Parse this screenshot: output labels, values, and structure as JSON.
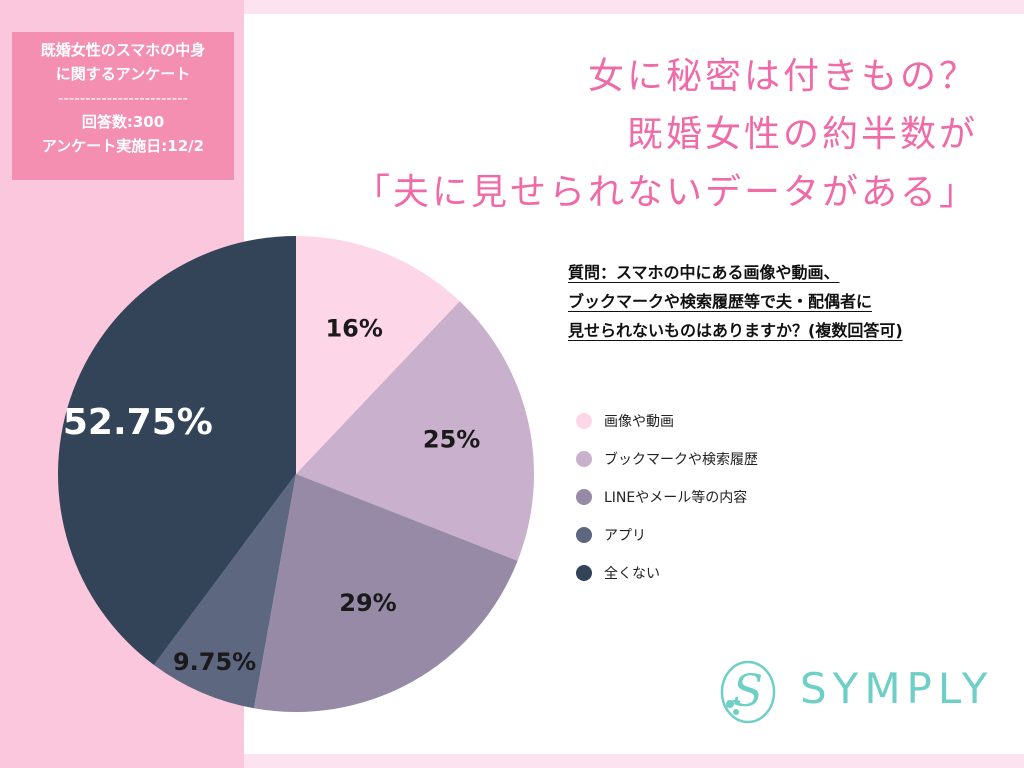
{
  "info_box": {
    "line1": "既婚女性のスマホの中身",
    "line2": "に関するアンケート",
    "divider": "------------------------",
    "count": "回答数:300",
    "date": "アンケート実施日:12/2"
  },
  "headline": {
    "line1": "女に秘密は付きもの？",
    "line2": "既婚女性の約半数が",
    "line3": "「夫に見せられないデータがある」"
  },
  "question": {
    "line1": "質問：スマホの中にある画像や動画、",
    "line2": "ブックマークや検索履歴等で夫・配偶者に",
    "line3": "見せられないものはありますか？(複数回答可)"
  },
  "chart_data": {
    "type": "pie",
    "title": "",
    "categories": [
      "画像や動画",
      "ブックマークや検索履歴",
      "LINEやメール等の内容",
      "アプリ",
      "全くない"
    ],
    "values": [
      16,
      25,
      29,
      9.75,
      52.75
    ],
    "labels": [
      "16%",
      "25%",
      "29%",
      "9.75%",
      "52.75%"
    ],
    "colors": [
      "#fdd6e8",
      "#c9b0cc",
      "#968aa6",
      "#5e6780",
      "#334459"
    ],
    "label_colors": [
      "#1a1a1a",
      "#1a1a1a",
      "#1a1a1a",
      "#1a1a1a",
      "#ffffff"
    ],
    "start_angle_deg": 0,
    "direction": "clockwise",
    "legend_position": "right"
  },
  "logo": {
    "text": "SYMPLY",
    "mark_letter": "S",
    "color": "#6ecfc7"
  }
}
